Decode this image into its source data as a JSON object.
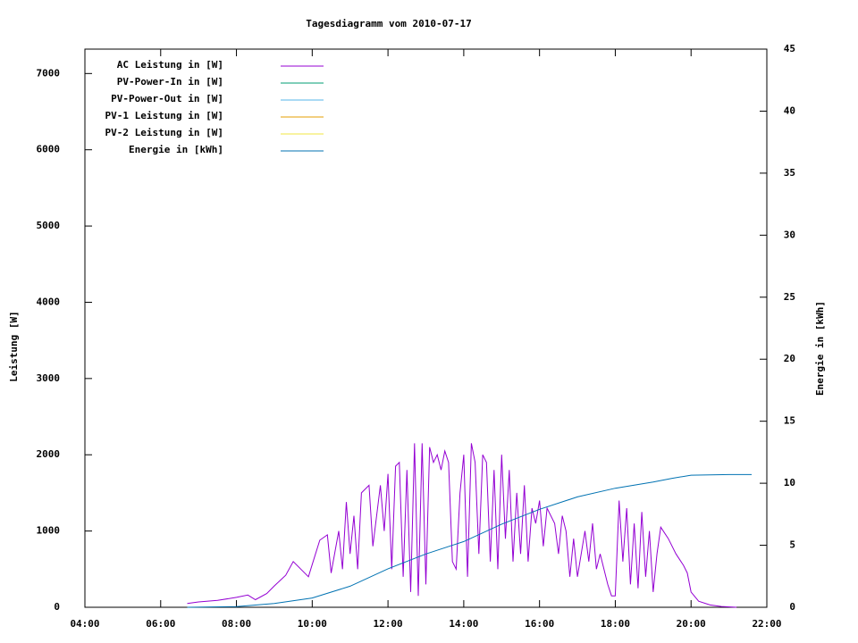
{
  "chart_data": {
    "type": "line",
    "title": "Tagesdiagramm vom 2010-07-17",
    "ylabel": "Leistung [W]",
    "y2label": "Energie in [kWh]",
    "xlim": [
      4,
      22
    ],
    "xticks": [
      {
        "value": 4,
        "label": "04:00"
      },
      {
        "value": 6,
        "label": "06:00"
      },
      {
        "value": 8,
        "label": "08:00"
      },
      {
        "value": 10,
        "label": "10:00"
      },
      {
        "value": 12,
        "label": "12:00"
      },
      {
        "value": 14,
        "label": "14:00"
      },
      {
        "value": 16,
        "label": "16:00"
      },
      {
        "value": 18,
        "label": "18:00"
      },
      {
        "value": 20,
        "label": "20:00"
      },
      {
        "value": 22,
        "label": "22:00"
      }
    ],
    "ylim": [
      0,
      7320
    ],
    "yticks": [
      0,
      1000,
      2000,
      3000,
      4000,
      5000,
      6000,
      7000
    ],
    "y2lim": [
      0,
      45
    ],
    "y2ticks": [
      0,
      5,
      10,
      15,
      20,
      25,
      30,
      35,
      40,
      45
    ],
    "legend": "top-left",
    "series": [
      {
        "name": "AC Leistung in [W]",
        "color": "#9400d3",
        "x": [
          6.7,
          7.0,
          7.5,
          8.0,
          8.3,
          8.5,
          8.8,
          9.0,
          9.3,
          9.5,
          9.7,
          9.9,
          10.0,
          10.2,
          10.4,
          10.5,
          10.7,
          10.8,
          10.9,
          11.0,
          11.1,
          11.2,
          11.3,
          11.5,
          11.6,
          11.7,
          11.8,
          11.9,
          12.0,
          12.1,
          12.2,
          12.3,
          12.4,
          12.5,
          12.6,
          12.7,
          12.8,
          12.9,
          13.0,
          13.1,
          13.2,
          13.3,
          13.4,
          13.5,
          13.6,
          13.7,
          13.8,
          13.9,
          14.0,
          14.1,
          14.2,
          14.3,
          14.4,
          14.5,
          14.6,
          14.7,
          14.8,
          14.9,
          15.0,
          15.1,
          15.2,
          15.3,
          15.4,
          15.5,
          15.6,
          15.7,
          15.8,
          15.9,
          16.0,
          16.1,
          16.2,
          16.4,
          16.5,
          16.6,
          16.7,
          16.8,
          16.9,
          17.0,
          17.2,
          17.3,
          17.4,
          17.5,
          17.6,
          17.8,
          17.9,
          18.0,
          18.1,
          18.2,
          18.3,
          18.4,
          18.5,
          18.6,
          18.7,
          18.8,
          18.9,
          19.0,
          19.1,
          19.2,
          19.4,
          19.6,
          19.8,
          19.9,
          20.0,
          20.2,
          20.5,
          20.8,
          21.2
        ],
        "values": [
          50,
          70,
          90,
          130,
          160,
          100,
          180,
          280,
          420,
          600,
          500,
          400,
          560,
          880,
          950,
          450,
          1000,
          500,
          1380,
          700,
          1200,
          500,
          1500,
          1600,
          800,
          1200,
          1600,
          1000,
          1750,
          500,
          1850,
          1900,
          400,
          1800,
          200,
          2150,
          150,
          2150,
          300,
          2100,
          1900,
          2000,
          1800,
          2050,
          1900,
          600,
          500,
          1500,
          2000,
          400,
          2150,
          1900,
          700,
          2000,
          1900,
          600,
          1800,
          500,
          2000,
          900,
          1800,
          600,
          1500,
          700,
          1600,
          600,
          1300,
          1100,
          1400,
          800,
          1300,
          1100,
          700,
          1200,
          1000,
          400,
          900,
          400,
          1000,
          600,
          1100,
          500,
          700,
          300,
          150,
          150,
          1400,
          600,
          1300,
          300,
          1100,
          250,
          1250,
          400,
          1000,
          200,
          700,
          1050,
          900,
          700,
          550,
          450,
          200,
          80,
          30,
          10,
          0
        ]
      },
      {
        "name": "PV-Power-In in [W]",
        "color": "#009e73",
        "x": [],
        "values": []
      },
      {
        "name": "PV-Power-Out in [W]",
        "color": "#56b4e9",
        "x": [],
        "values": []
      },
      {
        "name": "PV-1 Leistung in [W]",
        "color": "#e69f00",
        "x": [],
        "values": []
      },
      {
        "name": "PV-2 Leistung in [W]",
        "color": "#f0e442",
        "x": [],
        "values": []
      },
      {
        "name": "Energie in [kWh]",
        "color": "#0072b2",
        "axis": "y2",
        "x": [
          6.7,
          8,
          9,
          10,
          11,
          12,
          13,
          14,
          15,
          16,
          17,
          18,
          19,
          19.5,
          20,
          21,
          21.6
        ],
        "values": [
          0,
          0.05,
          0.3,
          0.75,
          1.7,
          3.1,
          4.3,
          5.3,
          6.7,
          7.9,
          8.9,
          9.6,
          10.1,
          10.4,
          10.65,
          10.7,
          10.7
        ]
      }
    ]
  }
}
